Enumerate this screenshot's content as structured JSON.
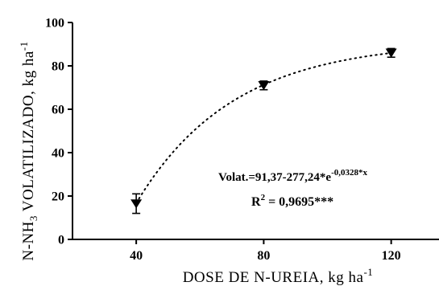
{
  "chart_data": {
    "type": "scatter",
    "xlabel": "DOSE DE N-UREIA, kg ha",
    "xlabel_sup": "-1",
    "ylabel_parts": {
      "a": "N-NH",
      "sub": "3",
      "b": " VOLATILIZADO, kg ha",
      "sup": "-1"
    },
    "x_ticks": [
      "40",
      "80",
      "120"
    ],
    "y_ticks": [
      "0",
      "20",
      "40",
      "60",
      "80",
      "100"
    ],
    "xlim": [
      20,
      135
    ],
    "ylim": [
      0,
      100
    ],
    "points": [
      {
        "x": 40,
        "y": 16.5,
        "err": 4.5
      },
      {
        "x": 80,
        "y": 71,
        "err": 2
      },
      {
        "x": 120,
        "y": 86,
        "err": 2
      }
    ],
    "fit": {
      "a": 91.37,
      "b": 277.24,
      "k": -0.0328,
      "x_range": [
        40,
        120
      ]
    },
    "equation": {
      "main": "Volat.=91,37-277,24*e",
      "exp": "-0,0328*x"
    },
    "r2": {
      "label": "R",
      "sup": "2",
      "value": " = 0,9695***"
    },
    "grid": false,
    "legend": "none",
    "marker_color": "#000000",
    "curve_style": "dotted"
  }
}
